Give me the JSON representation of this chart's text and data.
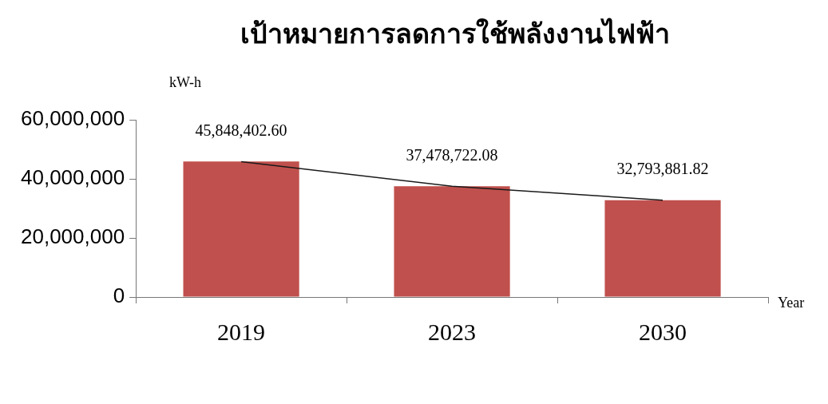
{
  "chart_data": {
    "type": "bar",
    "title": "เป้าหมายการลดการใช้พลังงานไฟฟ้า",
    "ylabel": "kW-h",
    "xlabel": "Year",
    "categories": [
      "2019",
      "2023",
      "2030"
    ],
    "series": [
      {
        "color": "#c0504d",
        "values": [
          45848402.6,
          37478722.08,
          32793881.82
        ],
        "value_labels": [
          "45,848,402.60",
          "37,478,722.08",
          "32,793,881.82"
        ]
      },
      {
        "type": "line",
        "color": "#1a1a1a",
        "values": [
          45800000,
          37500000,
          32800000
        ],
        "marker": "none"
      }
    ],
    "ylim": [
      0,
      60000000
    ],
    "yticks": [
      {
        "value": 0,
        "label": "0"
      },
      {
        "value": 20000000,
        "label": "20,000,000"
      },
      {
        "value": 40000000,
        "label": "40,000,000"
      },
      {
        "value": 60000000,
        "label": "60,000,000"
      }
    ],
    "grid": false,
    "legend": false
  }
}
